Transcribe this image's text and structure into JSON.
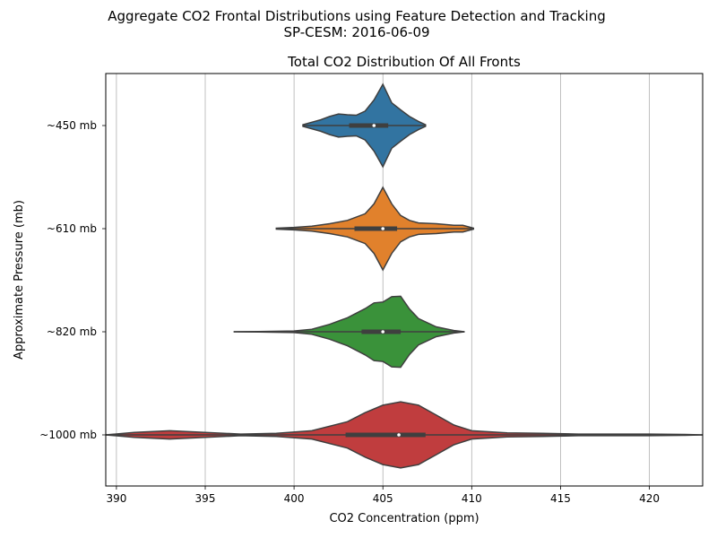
{
  "suptitle_line1": "Aggregate CO2 Frontal Distributions using Feature Detection and Tracking",
  "suptitle_line2": "SP-CESM: 2016-06-09",
  "chart_data": {
    "type": "violin",
    "orientation": "horizontal",
    "title": "Total CO2 Distribution Of All Fronts",
    "xlabel": "CO2 Concentration (ppm)",
    "ylabel": "Approximate Pressure (mb)",
    "xlim": [
      389.4,
      423.0
    ],
    "xticks": [
      390,
      395,
      400,
      405,
      410,
      415,
      420
    ],
    "grid": "vertical",
    "categories": [
      "~450 mb",
      "~610 mb",
      "~820 mb",
      "~1000 mb"
    ],
    "series": [
      {
        "category": "~450 mb",
        "color": "#3274a1",
        "min": 400.5,
        "q1": 403.1,
        "median": 404.5,
        "q3": 405.3,
        "max": 407.4,
        "profile": [
          [
            400.5,
            0.02
          ],
          [
            401.0,
            0.08
          ],
          [
            401.5,
            0.14
          ],
          [
            402.0,
            0.22
          ],
          [
            402.5,
            0.28
          ],
          [
            403.0,
            0.26
          ],
          [
            403.5,
            0.25
          ],
          [
            404.0,
            0.35
          ],
          [
            404.5,
            0.62
          ],
          [
            405.0,
            1.0
          ],
          [
            405.5,
            0.55
          ],
          [
            406.0,
            0.38
          ],
          [
            406.5,
            0.22
          ],
          [
            407.0,
            0.1
          ],
          [
            407.4,
            0.02
          ]
        ]
      },
      {
        "category": "~610 mb",
        "color": "#e1812c",
        "min": 399.0,
        "q1": 403.4,
        "median": 405.0,
        "q3": 405.8,
        "max": 410.1,
        "profile": [
          [
            399.0,
            0.01
          ],
          [
            400.0,
            0.03
          ],
          [
            401.0,
            0.06
          ],
          [
            402.0,
            0.12
          ],
          [
            403.0,
            0.2
          ],
          [
            404.0,
            0.36
          ],
          [
            404.5,
            0.6
          ],
          [
            405.0,
            1.0
          ],
          [
            405.5,
            0.6
          ],
          [
            406.0,
            0.32
          ],
          [
            406.5,
            0.2
          ],
          [
            407.0,
            0.14
          ],
          [
            408.0,
            0.12
          ],
          [
            409.0,
            0.08
          ],
          [
            409.5,
            0.08
          ],
          [
            410.1,
            0.01
          ]
        ]
      },
      {
        "category": "~820 mb",
        "color": "#3a923a",
        "min": 396.6,
        "q1": 403.8,
        "median": 405.0,
        "q3": 406.0,
        "max": 409.6,
        "profile": [
          [
            396.6,
            0.0
          ],
          [
            398.0,
            0.005
          ],
          [
            400.0,
            0.02
          ],
          [
            401.0,
            0.06
          ],
          [
            402.0,
            0.18
          ],
          [
            403.0,
            0.34
          ],
          [
            404.0,
            0.56
          ],
          [
            404.5,
            0.7
          ],
          [
            405.0,
            0.72
          ],
          [
            405.5,
            0.85
          ],
          [
            406.0,
            0.86
          ],
          [
            406.5,
            0.55
          ],
          [
            407.0,
            0.32
          ],
          [
            408.0,
            0.12
          ],
          [
            409.0,
            0.03
          ],
          [
            409.6,
            0.0
          ]
        ]
      },
      {
        "category": "~1000 mb",
        "color": "#c03d3e",
        "min": 389.4,
        "q1": 402.9,
        "median": 405.9,
        "q3": 407.4,
        "max": 423.0,
        "profile": [
          [
            389.4,
            0.0
          ],
          [
            391.0,
            0.06
          ],
          [
            393.0,
            0.1
          ],
          [
            395.0,
            0.06
          ],
          [
            397.0,
            0.02
          ],
          [
            399.0,
            0.04
          ],
          [
            401.0,
            0.1
          ],
          [
            403.0,
            0.32
          ],
          [
            404.0,
            0.54
          ],
          [
            405.0,
            0.72
          ],
          [
            406.0,
            0.8
          ],
          [
            407.0,
            0.72
          ],
          [
            408.0,
            0.48
          ],
          [
            409.0,
            0.24
          ],
          [
            410.0,
            0.1
          ],
          [
            412.0,
            0.05
          ],
          [
            414.0,
            0.04
          ],
          [
            416.0,
            0.02
          ],
          [
            418.0,
            0.02
          ],
          [
            420.0,
            0.02
          ],
          [
            422.0,
            0.01
          ],
          [
            423.0,
            0.0
          ]
        ]
      }
    ]
  }
}
